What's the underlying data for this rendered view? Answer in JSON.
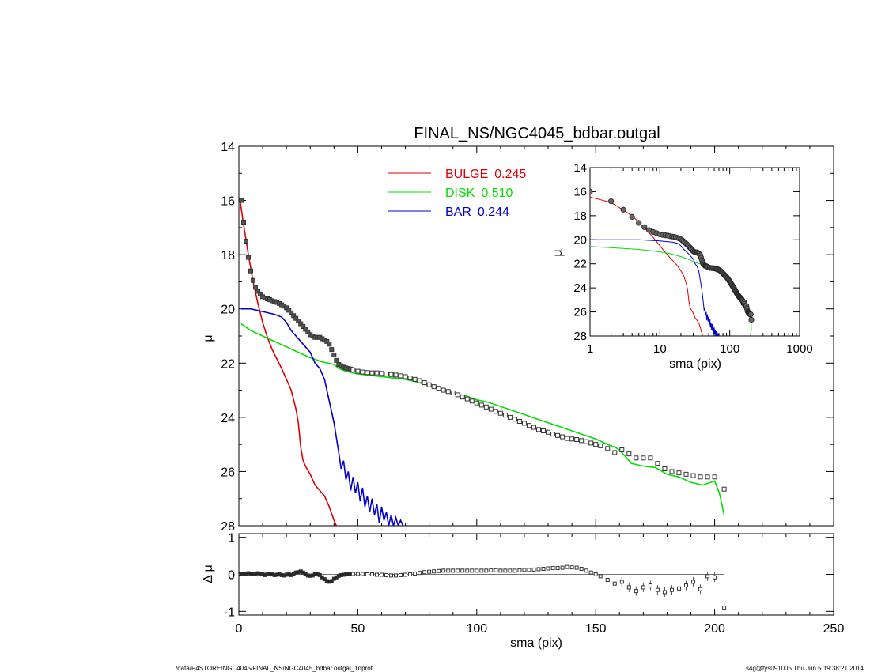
{
  "chart_data": {
    "type": "line",
    "title": "FINAL_NS/NGC4045_bdbar.outgal",
    "footer_left": "/data/P4STORE/NGC4045/FINAL_NS/NGC4045_bdbar.outgal_1dprof",
    "footer_right": "s4g@fys091005  Thu Jun  5 19:38:21 2014",
    "main": {
      "xlabel": "sma (pix)",
      "ylabel": "μ",
      "xlim": [
        0,
        250
      ],
      "ylim": [
        28,
        14
      ],
      "xticks": [
        "0",
        "50",
        "100",
        "150",
        "200",
        "250"
      ],
      "yticks": [
        "14",
        "16",
        "18",
        "20",
        "22",
        "24",
        "26",
        "28"
      ],
      "legend": [
        {
          "name": "BULGE",
          "value": "0.245",
          "color": "#dd0000"
        },
        {
          "name": "DISK",
          "value": "0.510",
          "color": "#00dd00"
        },
        {
          "name": "BAR",
          "value": "0.244",
          "color": "#0000cc"
        }
      ],
      "observed": {
        "x": [
          1,
          2,
          3,
          4,
          5,
          6,
          7,
          8,
          9,
          10,
          11,
          12,
          13,
          14,
          15,
          16,
          17,
          18,
          19,
          20,
          21,
          22,
          23,
          24,
          25,
          26,
          27,
          28,
          29,
          30,
          31,
          32,
          33,
          34,
          35,
          36,
          37,
          38,
          39,
          40,
          41,
          42,
          43,
          44,
          45,
          46,
          47,
          48,
          50,
          52,
          54,
          56,
          58,
          60,
          62,
          64,
          66,
          68,
          70,
          72,
          74,
          76,
          78,
          80,
          82,
          84,
          86,
          88,
          90,
          92,
          94,
          96,
          98,
          100,
          102,
          104,
          106,
          108,
          110,
          112,
          114,
          116,
          118,
          120,
          122,
          124,
          126,
          128,
          130,
          132,
          134,
          136,
          138,
          140,
          142,
          144,
          146,
          148,
          150,
          152,
          155,
          158,
          161,
          164,
          167,
          170,
          173,
          176,
          179,
          182,
          185,
          188,
          191,
          194,
          197,
          200,
          204
        ],
        "y": [
          16.0,
          16.8,
          17.5,
          18.1,
          18.6,
          18.95,
          19.2,
          19.35,
          19.45,
          19.55,
          19.6,
          19.63,
          19.66,
          19.7,
          19.73,
          19.76,
          19.8,
          19.85,
          19.9,
          19.96,
          20.05,
          20.15,
          20.25,
          20.35,
          20.45,
          20.55,
          20.65,
          20.75,
          20.85,
          20.95,
          21.0,
          21.05,
          21.05,
          21.05,
          21.1,
          21.15,
          21.2,
          21.3,
          21.5,
          21.7,
          21.9,
          22.05,
          22.1,
          22.15,
          22.18,
          22.2,
          22.22,
          22.25,
          22.3,
          22.33,
          22.35,
          22.36,
          22.36,
          22.38,
          22.4,
          22.42,
          22.44,
          22.47,
          22.5,
          22.55,
          22.6,
          22.65,
          22.72,
          22.8,
          22.87,
          22.93,
          23.0,
          23.05,
          23.1,
          23.17,
          23.25,
          23.32,
          23.4,
          23.47,
          23.55,
          23.62,
          23.7,
          23.78,
          23.85,
          23.92,
          24.0,
          24.07,
          24.15,
          24.22,
          24.3,
          24.37,
          24.45,
          24.5,
          24.55,
          24.62,
          24.67,
          24.72,
          24.78,
          24.8,
          24.82,
          24.86,
          24.9,
          24.95,
          25.0,
          25.05,
          25.15,
          25.3,
          25.2,
          25.35,
          25.5,
          25.5,
          25.5,
          25.7,
          25.9,
          26.0,
          26.05,
          26.1,
          26.15,
          26.2,
          26.2,
          26.2,
          26.65
        ]
      },
      "bulge": {
        "x": [
          0.5,
          2,
          4,
          6,
          8,
          10,
          12,
          14,
          16,
          18,
          20,
          22,
          24,
          25,
          26,
          27,
          28,
          30,
          32,
          34,
          36,
          38,
          40,
          41
        ],
        "y": [
          16.0,
          16.9,
          18.0,
          19.0,
          19.8,
          20.5,
          21.05,
          21.5,
          21.85,
          22.2,
          22.6,
          23.0,
          23.7,
          24.2,
          25.1,
          25.6,
          25.8,
          26.1,
          26.5,
          26.7,
          26.9,
          27.3,
          27.8,
          28.0
        ]
      },
      "disk": {
        "x": [
          1,
          5,
          10,
          15,
          20,
          25,
          30,
          35,
          40,
          42,
          45,
          50,
          55,
          60,
          65,
          70,
          75,
          80,
          85,
          90,
          95,
          100,
          105,
          110,
          115,
          120,
          125,
          130,
          135,
          140,
          145,
          150,
          155,
          158,
          160,
          165,
          170,
          175,
          180,
          185,
          190,
          195,
          200,
          202,
          204
        ],
        "y": [
          20.55,
          20.8,
          21.0,
          21.2,
          21.4,
          21.6,
          21.8,
          21.95,
          22.05,
          22.2,
          22.3,
          22.4,
          22.45,
          22.5,
          22.55,
          22.6,
          22.7,
          22.85,
          22.95,
          23.1,
          23.2,
          23.35,
          23.45,
          23.6,
          23.75,
          23.9,
          24.05,
          24.2,
          24.35,
          24.5,
          24.65,
          24.8,
          25.0,
          25.1,
          25.2,
          25.7,
          25.8,
          25.85,
          26.1,
          26.2,
          26.4,
          26.5,
          26.35,
          26.8,
          27.6
        ]
      },
      "bar": {
        "x": [
          1,
          5,
          10,
          15,
          18,
          20,
          22,
          25,
          28,
          30,
          32,
          34,
          36,
          38,
          40,
          42,
          43,
          44,
          45,
          46,
          47,
          48,
          49,
          50,
          51,
          52,
          53,
          54,
          55,
          56,
          57,
          58,
          59,
          60,
          61,
          62,
          63,
          64,
          65,
          66,
          67,
          68,
          69
        ],
        "y": [
          20.0,
          20.0,
          20.1,
          20.2,
          20.3,
          20.5,
          20.8,
          21.1,
          21.4,
          21.6,
          22.0,
          22.2,
          22.6,
          23.4,
          24.2,
          25.3,
          25.9,
          25.6,
          26.3,
          26.0,
          26.7,
          26.2,
          26.8,
          26.4,
          27.1,
          26.6,
          27.3,
          26.9,
          27.5,
          27.0,
          27.6,
          27.2,
          27.9,
          27.3,
          27.8,
          27.5,
          28.0,
          27.6,
          28.0,
          27.7,
          28.0,
          27.8,
          28.0
        ]
      }
    },
    "residual": {
      "ylabel": "Δ μ",
      "ylim": [
        -1.1,
        1.1
      ],
      "yticks": [
        "1",
        "0",
        "-1"
      ],
      "x": [
        1,
        2,
        3,
        4,
        5,
        6,
        7,
        8,
        9,
        10,
        11,
        12,
        13,
        14,
        15,
        16,
        17,
        18,
        19,
        20,
        21,
        22,
        23,
        24,
        25,
        26,
        27,
        28,
        29,
        30,
        31,
        32,
        33,
        34,
        35,
        36,
        37,
        38,
        39,
        40,
        41,
        42,
        43,
        44,
        45,
        46,
        47,
        48,
        50,
        52,
        54,
        56,
        58,
        60,
        62,
        64,
        66,
        68,
        70,
        72,
        74,
        76,
        78,
        80,
        82,
        84,
        86,
        88,
        90,
        92,
        94,
        96,
        98,
        100,
        102,
        104,
        106,
        108,
        110,
        112,
        114,
        116,
        118,
        120,
        122,
        124,
        126,
        128,
        130,
        132,
        134,
        136,
        138,
        140,
        142,
        144,
        146,
        148,
        150,
        152,
        155,
        158,
        161,
        164,
        167,
        170,
        173,
        176,
        179,
        182,
        185,
        188,
        191,
        194,
        197,
        200,
        204
      ],
      "y": [
        0.0,
        0.02,
        0.01,
        0.03,
        0.02,
        0.0,
        0.01,
        0.03,
        0.02,
        0.0,
        -0.02,
        0.01,
        0.02,
        0.0,
        -0.02,
        -0.01,
        0.01,
        -0.02,
        -0.03,
        -0.01,
        0.0,
        -0.02,
        0.02,
        0.05,
        0.06,
        0.08,
        0.05,
        0.0,
        -0.03,
        -0.04,
        -0.03,
        0.0,
        0.02,
        -0.02,
        -0.08,
        -0.13,
        -0.18,
        -0.2,
        -0.18,
        -0.12,
        -0.08,
        -0.04,
        -0.02,
        -0.01,
        0.0,
        0.0,
        0.01,
        0.01,
        0.01,
        0.01,
        0.0,
        0.0,
        -0.01,
        -0.01,
        -0.02,
        -0.03,
        -0.03,
        -0.02,
        -0.01,
        0.0,
        0.02,
        0.04,
        0.06,
        0.07,
        0.08,
        0.09,
        0.1,
        0.1,
        0.1,
        0.1,
        0.1,
        0.1,
        0.1,
        0.1,
        0.1,
        0.1,
        0.11,
        0.11,
        0.1,
        0.1,
        0.1,
        0.1,
        0.11,
        0.12,
        0.12,
        0.13,
        0.14,
        0.15,
        0.16,
        0.17,
        0.17,
        0.18,
        0.2,
        0.19,
        0.18,
        0.15,
        0.1,
        0.05,
        0.0,
        -0.05,
        -0.15,
        -0.25,
        -0.2,
        -0.35,
        -0.45,
        -0.35,
        -0.3,
        -0.42,
        -0.48,
        -0.42,
        -0.38,
        -0.3,
        -0.2,
        -0.4,
        -0.05,
        -0.08,
        -0.9
      ]
    },
    "inset": {
      "xlabel": "sma (pix)",
      "ylabel": "μ",
      "xscale": "log",
      "xlim": [
        1,
        1000
      ],
      "ylim": [
        28,
        14
      ],
      "xticks": [
        "1",
        "10",
        "100",
        "1000"
      ],
      "yticks": [
        "14",
        "16",
        "18",
        "20",
        "22",
        "24",
        "26",
        "28"
      ]
    }
  }
}
